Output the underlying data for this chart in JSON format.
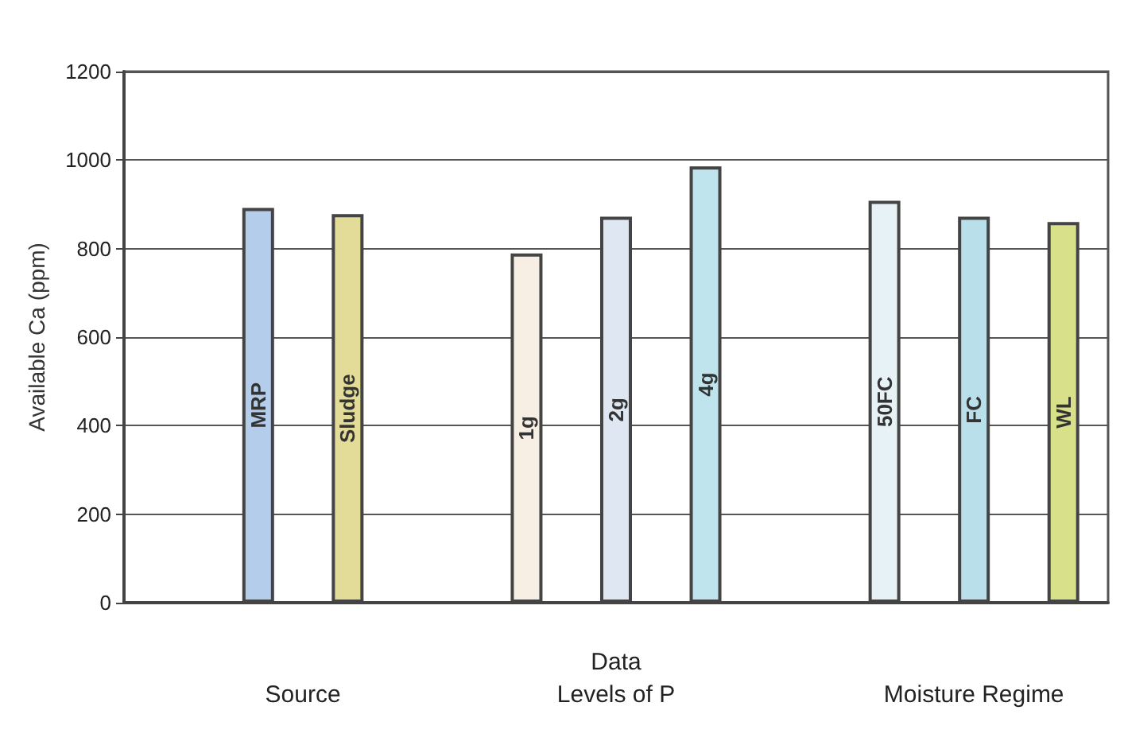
{
  "chart_data": {
    "type": "bar",
    "xlabel": "Data",
    "ylabel": "Available Ca (ppm)",
    "categories": [
      null,
      "MRP",
      "Sludge",
      null,
      "1g",
      "2g",
      "4g",
      null,
      "50FC",
      "FC",
      "WL"
    ],
    "values": [
      null,
      892,
      878,
      null,
      789,
      872,
      986,
      null,
      908,
      872,
      860
    ],
    "colors": [
      "#ffffff",
      "#b4cdea",
      "#e2dc98",
      "#ffffff",
      "#f8efe4",
      "#dfe7f3",
      "#bfe4ee",
      "#ffffff",
      "#e6f2f6",
      "#b9e0ea",
      "#d9e08a"
    ],
    "ylim": [
      0,
      1200
    ],
    "yticks": [
      0,
      200,
      400,
      600,
      800,
      1000,
      1200
    ],
    "grid": "y",
    "annotations": [
      "Source",
      "Levels of P",
      "Moisture Regime"
    ]
  }
}
